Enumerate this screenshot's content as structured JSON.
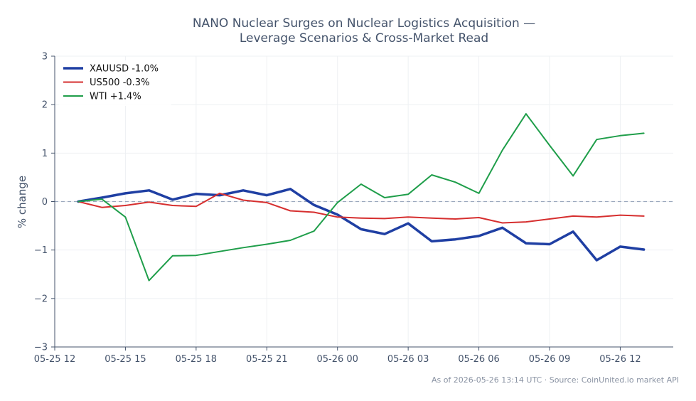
{
  "chart_data": {
    "type": "line",
    "title": "NANO Nuclear Surges on Nuclear Logistics Acquisition —",
    "subtitle": "Leverage Scenarios & Cross-Market Read",
    "xlabel": "",
    "ylabel": "% change",
    "ylim": [
      -3,
      3
    ],
    "yticks": [
      3,
      2,
      1,
      0,
      -1,
      -2,
      -3
    ],
    "ytick_labels": [
      "3",
      "2",
      "1",
      "0",
      "−1",
      "−2",
      "−3"
    ],
    "xlim": [
      "2026-05-25 12:00",
      "2026-05-26 14:15"
    ],
    "xticks": [
      "2026-05-25 12:00",
      "2026-05-25 15:00",
      "2026-05-25 18:00",
      "2026-05-25 21:00",
      "2026-05-26 00:00",
      "2026-05-26 03:00",
      "2026-05-26 06:00",
      "2026-05-26 09:00",
      "2026-05-26 12:00"
    ],
    "xtick_labels": [
      "05-25 12",
      "05-25 15",
      "05-25 18",
      "05-25 21",
      "05-26 00",
      "05-26 03",
      "05-26 06",
      "05-26 09",
      "05-26 12"
    ],
    "x": [
      "2026-05-25 13:00",
      "2026-05-25 14:00",
      "2026-05-25 15:00",
      "2026-05-25 16:00",
      "2026-05-25 17:00",
      "2026-05-25 18:00",
      "2026-05-25 19:00",
      "2026-05-25 20:00",
      "2026-05-25 21:00",
      "2026-05-25 22:00",
      "2026-05-25 23:00",
      "2026-05-26 00:00",
      "2026-05-26 01:00",
      "2026-05-26 02:00",
      "2026-05-26 03:00",
      "2026-05-26 04:00",
      "2026-05-26 05:00",
      "2026-05-26 06:00",
      "2026-05-26 07:00",
      "2026-05-26 08:00",
      "2026-05-26 09:00",
      "2026-05-26 10:00",
      "2026-05-26 11:00",
      "2026-05-26 12:00",
      "2026-05-26 13:00"
    ],
    "series": [
      {
        "name": "XAUUSD -1.0%",
        "color": "#1f3fa3",
        "values": [
          0.0,
          0.08,
          0.17,
          0.23,
          0.04,
          0.16,
          0.13,
          0.23,
          0.13,
          0.26,
          -0.07,
          -0.27,
          -0.57,
          -0.67,
          -0.45,
          -0.82,
          -0.78,
          -0.71,
          -0.54,
          -0.86,
          -0.88,
          -0.62,
          -1.21,
          -0.93,
          -0.99
        ]
      },
      {
        "name": "US500 -0.3%",
        "color": "#d62f2f",
        "values": [
          0.0,
          -0.12,
          -0.08,
          -0.01,
          -0.08,
          -0.1,
          0.17,
          0.03,
          -0.02,
          -0.19,
          -0.22,
          -0.32,
          -0.34,
          -0.35,
          -0.32,
          -0.34,
          -0.36,
          -0.33,
          -0.44,
          -0.42,
          -0.36,
          -0.3,
          -0.32,
          -0.28,
          -0.3
        ]
      },
      {
        "name": "WTI +1.4%",
        "color": "#1f9e4a",
        "values": [
          0.0,
          0.05,
          -0.32,
          -1.63,
          -1.12,
          -1.11,
          -1.03,
          -0.95,
          -0.88,
          -0.8,
          -0.61,
          -0.02,
          0.36,
          0.08,
          0.15,
          0.55,
          0.4,
          0.17,
          1.06,
          1.81,
          1.16,
          0.53,
          1.28,
          1.36,
          1.41
        ]
      }
    ],
    "reference_line": 0,
    "grid": true,
    "legend_position": "top-left"
  },
  "footer": {
    "text": "As of 2026-05-26 13:14 UTC · Source: CoinUnited.io market API"
  }
}
